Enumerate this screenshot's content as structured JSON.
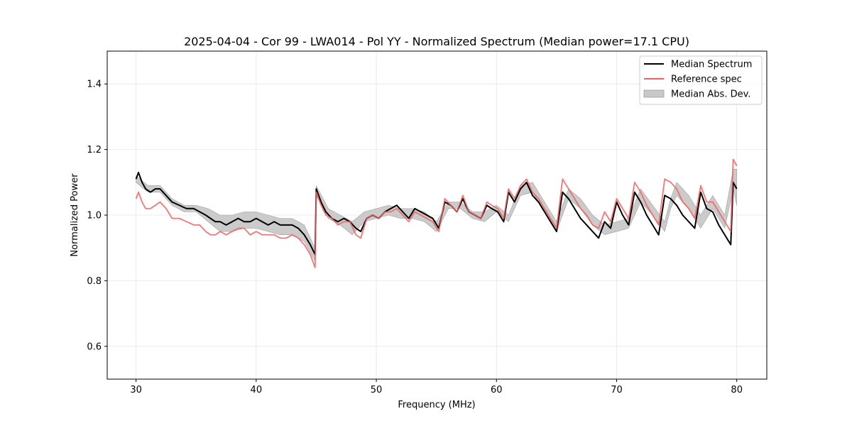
{
  "chart_data": {
    "type": "line",
    "title": "2025-04-04 - Cor 99 - LWA014 - Pol YY - Normalized Spectrum (Median power=17.1 CPU)",
    "xlabel": "Frequency (MHz)",
    "ylabel": "Normalized Power",
    "xlim": [
      27.6,
      82.5
    ],
    "ylim": [
      0.5,
      1.5
    ],
    "xticks": [
      30,
      40,
      50,
      60,
      70,
      80
    ],
    "yticks": [
      0.6,
      0.8,
      1.0,
      1.2,
      1.4
    ],
    "grid": true,
    "legend_position": "top-right",
    "colors": {
      "median": "#000000",
      "reference": "#f06060",
      "mad_fill": "#c8c8c8",
      "mad_edge": "#a0a0a0",
      "overlap": "#8b0000"
    },
    "legend": [
      {
        "label": "Median Spectrum",
        "kind": "line",
        "color": "#000000"
      },
      {
        "label": "Reference spec",
        "kind": "line",
        "color": "#f06060"
      },
      {
        "label": "Median Abs. Dev.",
        "kind": "patch",
        "color": "#c8c8c8"
      }
    ],
    "series": [
      {
        "name": "Median Spectrum",
        "x": [
          30.0,
          30.2,
          30.5,
          30.8,
          31.2,
          31.6,
          32.0,
          32.5,
          33.0,
          33.6,
          34.2,
          34.8,
          35.3,
          35.8,
          36.2,
          36.6,
          37.0,
          37.5,
          38.0,
          38.5,
          39.0,
          39.5,
          40.0,
          40.5,
          41.0,
          41.5,
          42.0,
          42.5,
          43.0,
          43.5,
          44.0,
          44.5,
          44.9,
          45.0,
          45.4,
          45.8,
          46.3,
          46.8,
          47.3,
          47.8,
          48.3,
          48.7,
          49.2,
          49.7,
          50.2,
          50.7,
          51.2,
          51.7,
          52.2,
          52.7,
          53.2,
          53.7,
          54.2,
          54.7,
          55.2,
          55.7,
          56.2,
          56.7,
          57.2,
          57.7,
          58.2,
          58.7,
          59.2,
          59.6,
          60.1,
          60.6,
          61.0,
          61.5,
          62.0,
          62.5,
          63.0,
          63.5,
          64.0,
          64.5,
          65.0,
          65.5,
          66.0,
          66.5,
          67.0,
          67.5,
          68.0,
          68.5,
          69.0,
          69.5,
          70.0,
          70.5,
          71.0,
          71.5,
          72.0,
          72.5,
          73.0,
          73.5,
          74.0,
          74.5,
          75.0,
          75.5,
          76.0,
          76.5,
          77.0,
          77.5,
          78.0,
          78.5,
          79.0,
          79.5,
          79.7,
          80.0
        ],
        "y": [
          1.11,
          1.13,
          1.1,
          1.08,
          1.07,
          1.08,
          1.08,
          1.06,
          1.04,
          1.03,
          1.02,
          1.02,
          1.01,
          1.0,
          0.99,
          0.98,
          0.98,
          0.97,
          0.98,
          0.99,
          0.98,
          0.98,
          0.99,
          0.98,
          0.97,
          0.98,
          0.97,
          0.97,
          0.97,
          0.96,
          0.94,
          0.91,
          0.88,
          1.08,
          1.04,
          1.01,
          0.99,
          0.98,
          0.99,
          0.98,
          0.96,
          0.95,
          0.99,
          1.0,
          0.99,
          1.01,
          1.02,
          1.03,
          1.01,
          0.99,
          1.02,
          1.01,
          1.0,
          0.99,
          0.96,
          1.04,
          1.03,
          1.01,
          1.05,
          1.01,
          1.0,
          0.99,
          1.03,
          1.02,
          1.01,
          0.98,
          1.07,
          1.04,
          1.08,
          1.1,
          1.06,
          1.04,
          1.01,
          0.98,
          0.95,
          1.07,
          1.05,
          1.02,
          0.99,
          0.97,
          0.95,
          0.93,
          0.98,
          0.96,
          1.04,
          1.0,
          0.97,
          1.07,
          1.04,
          1.0,
          0.97,
          0.94,
          1.06,
          1.05,
          1.03,
          1.0,
          0.98,
          0.96,
          1.07,
          1.02,
          1.01,
          0.97,
          0.94,
          0.91,
          1.1,
          1.08
        ]
      },
      {
        "name": "Reference spec",
        "x": [
          30.0,
          30.2,
          30.5,
          30.8,
          31.2,
          31.6,
          32.0,
          32.5,
          33.0,
          33.6,
          34.2,
          34.8,
          35.3,
          35.8,
          36.2,
          36.6,
          37.0,
          37.5,
          38.0,
          38.5,
          39.0,
          39.5,
          40.0,
          40.5,
          41.0,
          41.5,
          42.0,
          42.5,
          43.0,
          43.5,
          44.0,
          44.5,
          44.9,
          45.0,
          45.4,
          45.8,
          46.3,
          46.8,
          47.3,
          47.8,
          48.3,
          48.7,
          49.2,
          49.7,
          50.2,
          50.7,
          51.2,
          51.7,
          52.2,
          52.7,
          53.2,
          53.7,
          54.2,
          54.7,
          55.2,
          55.7,
          56.2,
          56.7,
          57.2,
          57.7,
          58.2,
          58.7,
          59.2,
          59.6,
          60.1,
          60.6,
          61.0,
          61.5,
          62.0,
          62.5,
          63.0,
          63.5,
          64.0,
          64.5,
          65.0,
          65.5,
          66.0,
          66.5,
          67.0,
          67.5,
          68.0,
          68.5,
          69.0,
          69.5,
          70.0,
          70.5,
          71.0,
          71.5,
          72.0,
          72.5,
          73.0,
          73.5,
          74.0,
          74.5,
          75.0,
          75.5,
          76.0,
          76.5,
          77.0,
          77.5,
          78.0,
          78.5,
          79.0,
          79.5,
          79.7,
          80.0
        ],
        "y": [
          1.05,
          1.07,
          1.04,
          1.02,
          1.02,
          1.03,
          1.04,
          1.02,
          0.99,
          0.99,
          0.98,
          0.97,
          0.97,
          0.95,
          0.94,
          0.94,
          0.95,
          0.94,
          0.95,
          0.96,
          0.96,
          0.94,
          0.95,
          0.94,
          0.94,
          0.94,
          0.93,
          0.93,
          0.94,
          0.93,
          0.91,
          0.88,
          0.84,
          1.07,
          1.03,
          1.0,
          0.99,
          0.97,
          0.98,
          0.98,
          0.94,
          0.93,
          0.99,
          1.0,
          0.99,
          1.01,
          1.01,
          1.02,
          1.0,
          0.98,
          1.01,
          1.0,
          0.99,
          0.98,
          0.95,
          1.05,
          1.03,
          1.01,
          1.06,
          1.01,
          1.0,
          0.99,
          1.04,
          1.03,
          1.02,
          0.99,
          1.08,
          1.05,
          1.09,
          1.11,
          1.07,
          1.05,
          1.02,
          0.99,
          0.96,
          1.11,
          1.08,
          1.05,
          1.02,
          1.0,
          0.97,
          0.96,
          1.01,
          0.98,
          1.05,
          1.02,
          0.99,
          1.1,
          1.07,
          1.03,
          1.0,
          0.97,
          1.11,
          1.1,
          1.08,
          1.04,
          1.02,
          0.99,
          1.09,
          1.04,
          1.04,
          1.01,
          0.98,
          0.95,
          1.17,
          1.15
        ]
      }
    ],
    "mad_band": {
      "name": "Median Abs. Dev.",
      "x": [
        30.0,
        31.0,
        32.0,
        33.0,
        34.0,
        35.0,
        36.0,
        37.0,
        38.0,
        39.0,
        40.0,
        41.0,
        42.0,
        43.0,
        44.0,
        44.9,
        45.0,
        46.0,
        47.0,
        48.0,
        49.0,
        50.0,
        51.0,
        52.0,
        53.0,
        54.0,
        55.0,
        56.0,
        57.0,
        58.0,
        59.0,
        60.0,
        61.0,
        62.0,
        63.0,
        64.0,
        65.0,
        66.0,
        67.0,
        68.0,
        69.0,
        70.0,
        71.0,
        72.0,
        73.0,
        74.0,
        74.5,
        75.0,
        76.0,
        77.0,
        78.0,
        79.0,
        79.7,
        80.0
      ],
      "upper": [
        1.12,
        1.09,
        1.09,
        1.05,
        1.03,
        1.03,
        1.02,
        1.0,
        1.0,
        1.01,
        1.01,
        1.0,
        0.99,
        0.99,
        0.97,
        0.9,
        1.09,
        1.02,
        1.0,
        0.98,
        1.01,
        1.02,
        1.03,
        1.02,
        1.02,
        1.01,
        0.98,
        1.04,
        1.04,
        1.01,
        1.01,
        1.03,
        1.0,
        1.09,
        1.1,
        1.04,
        0.98,
        1.08,
        1.05,
        1.0,
        0.97,
        0.98,
        0.99,
        1.08,
        1.03,
        0.98,
        1.05,
        1.1,
        1.06,
        1.0,
        1.06,
        1.0,
        1.14,
        1.14
      ],
      "lower": [
        1.1,
        1.07,
        1.07,
        1.03,
        1.01,
        1.01,
        0.98,
        0.95,
        0.95,
        0.96,
        0.96,
        0.95,
        0.94,
        0.94,
        0.92,
        0.86,
        1.06,
        0.99,
        0.97,
        0.94,
        0.98,
        0.99,
        1.0,
        0.99,
        0.99,
        0.98,
        0.95,
        1.02,
        1.02,
        0.99,
        0.98,
        1.01,
        0.98,
        1.06,
        1.07,
        1.01,
        0.95,
        1.05,
        1.02,
        0.97,
        0.94,
        0.95,
        0.96,
        1.04,
        1.0,
        0.95,
        1.02,
        1.06,
        1.02,
        0.96,
        1.02,
        0.96,
        1.08,
        1.03
      ]
    }
  }
}
